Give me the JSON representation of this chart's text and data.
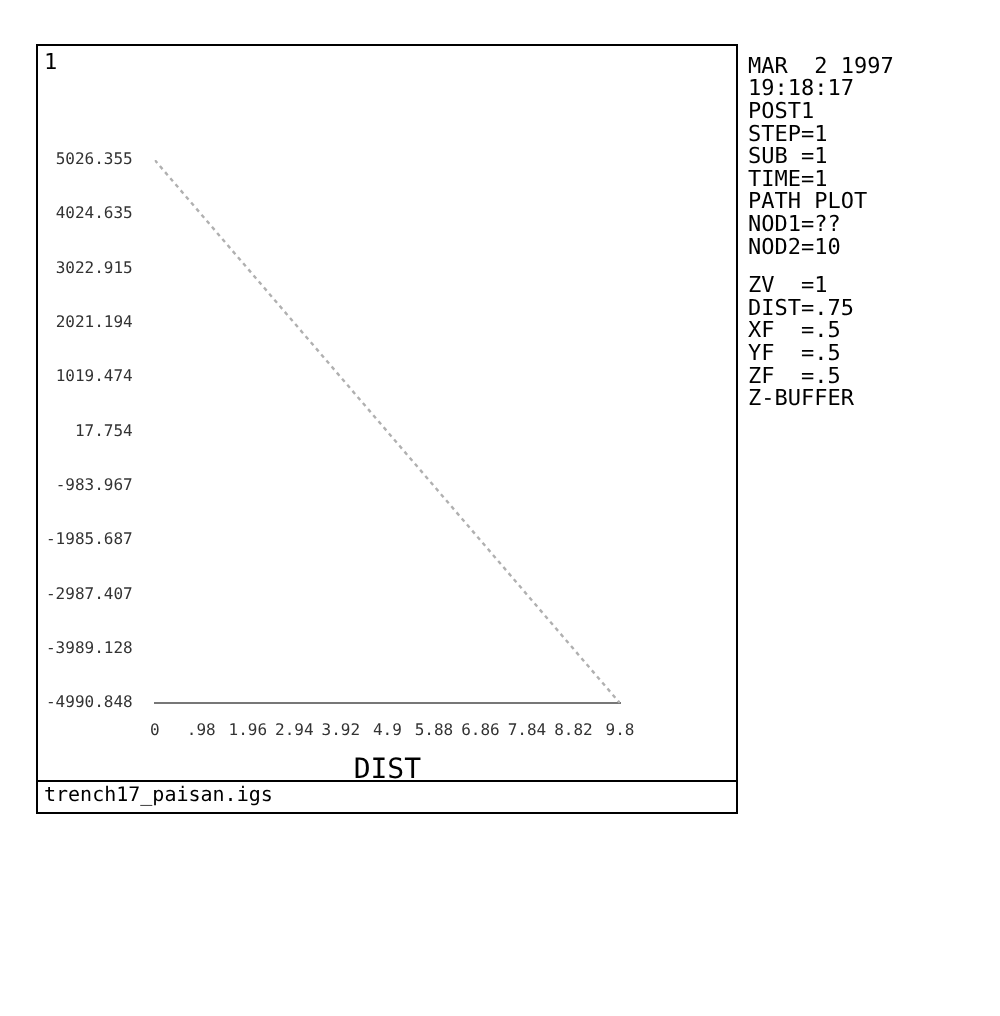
{
  "chart_data": {
    "type": "line",
    "xlabel": "DIST",
    "x": [
      0,
      9.8
    ],
    "series": [
      {
        "color": "#b0b0b0",
        "values": [
          5026.355,
          -4990.848
        ]
      }
    ],
    "xlim": [
      0,
      9.8
    ],
    "xticks": [
      0,
      {
        "value": 0.98,
        "label": ".98"
      },
      1.96,
      2.94,
      3.92,
      4.9,
      5.88,
      6.86,
      7.84,
      8.82,
      9.8
    ],
    "ylim": [
      -4990.848,
      5026.355
    ],
    "yticks": [
      -4990.848,
      -3989.128,
      -2987.407,
      -1985.687,
      -983.967,
      17.754,
      1019.474,
      2021.194,
      3022.915,
      4024.635,
      5026.355
    ],
    "grid": false,
    "legend": false,
    "marker": "none",
    "line_style": "dotted",
    "annotations": [
      "1",
      "MAR  2 1997",
      "19:18:17",
      "POST1",
      "STEP=1",
      "SUB =1",
      "TIME=1",
      "PATH PLOT",
      "NOD1=??",
      "NOD2=10",
      "ZV  =1",
      "DIST=.75",
      "XF  =.5",
      "YF  =.5",
      "ZF  =.5",
      "Z-BUFFER",
      "trench17_paisan.igs"
    ]
  }
}
